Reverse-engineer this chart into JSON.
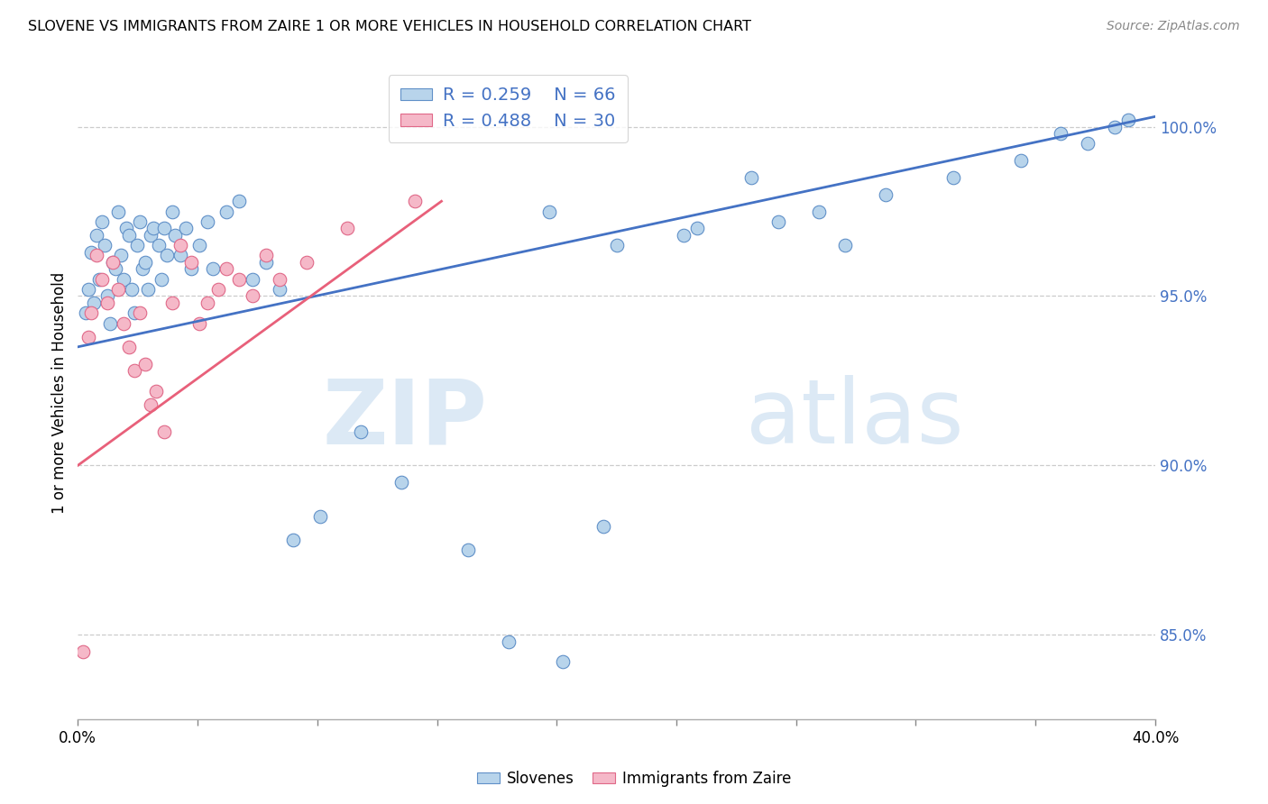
{
  "title": "SLOVENE VS IMMIGRANTS FROM ZAIRE 1 OR MORE VEHICLES IN HOUSEHOLD CORRELATION CHART",
  "source": "Source: ZipAtlas.com",
  "ylabel": "1 or more Vehicles in Household",
  "ytick_values": [
    85.0,
    90.0,
    95.0,
    100.0
  ],
  "xmin": 0.0,
  "xmax": 40.0,
  "ymin": 82.5,
  "ymax": 101.8,
  "legend_blue_label": "Slovenes",
  "legend_pink_label": "Immigrants from Zaire",
  "legend_r_blue": "R = 0.259",
  "legend_n_blue": "N = 66",
  "legend_r_pink": "R = 0.488",
  "legend_n_pink": "N = 30",
  "blue_fill": "#b8d4eb",
  "pink_fill": "#f5b8c8",
  "blue_edge": "#6090c8",
  "pink_edge": "#e06888",
  "blue_line_color": "#4472c4",
  "pink_line_color": "#e8607a",
  "text_color": "#4472c4",
  "watermark_color": "#dce9f5",
  "grid_color": "#cccccc",
  "background_color": "#ffffff",
  "blue_trendline_x": [
    0.0,
    40.0
  ],
  "blue_trendline_y": [
    93.5,
    100.3
  ],
  "pink_trendline_x": [
    0.0,
    13.5
  ],
  "pink_trendline_y": [
    90.0,
    97.8
  ],
  "blue_scatter_x": [
    0.3,
    0.4,
    0.5,
    0.6,
    0.7,
    0.8,
    0.9,
    1.0,
    1.1,
    1.2,
    1.3,
    1.4,
    1.5,
    1.6,
    1.7,
    1.8,
    1.9,
    2.0,
    2.1,
    2.2,
    2.3,
    2.4,
    2.5,
    2.6,
    2.7,
    2.8,
    3.0,
    3.1,
    3.2,
    3.3,
    3.5,
    3.6,
    3.8,
    4.0,
    4.2,
    4.5,
    4.8,
    5.0,
    5.5,
    6.0,
    6.5,
    7.0,
    7.5,
    8.0,
    9.0,
    10.5,
    12.0,
    14.5,
    17.5,
    20.0,
    22.5,
    25.0,
    27.5,
    30.0,
    32.5,
    35.0,
    37.5,
    39.0,
    16.0,
    18.0,
    19.5,
    23.0,
    26.0,
    28.5,
    36.5,
    38.5
  ],
  "blue_scatter_y": [
    94.5,
    95.2,
    96.3,
    94.8,
    96.8,
    95.5,
    97.2,
    96.5,
    95.0,
    94.2,
    96.0,
    95.8,
    97.5,
    96.2,
    95.5,
    97.0,
    96.8,
    95.2,
    94.5,
    96.5,
    97.2,
    95.8,
    96.0,
    95.2,
    96.8,
    97.0,
    96.5,
    95.5,
    97.0,
    96.2,
    97.5,
    96.8,
    96.2,
    97.0,
    95.8,
    96.5,
    97.2,
    95.8,
    97.5,
    97.8,
    95.5,
    96.0,
    95.2,
    87.8,
    88.5,
    91.0,
    89.5,
    87.5,
    97.5,
    96.5,
    96.8,
    98.5,
    97.5,
    98.0,
    98.5,
    99.0,
    99.5,
    100.2,
    84.8,
    84.2,
    88.2,
    97.0,
    97.2,
    96.5,
    99.8,
    100.0
  ],
  "pink_scatter_x": [
    0.2,
    0.4,
    0.5,
    0.7,
    0.9,
    1.1,
    1.3,
    1.5,
    1.7,
    1.9,
    2.1,
    2.3,
    2.5,
    2.7,
    2.9,
    3.2,
    3.5,
    3.8,
    4.2,
    4.5,
    4.8,
    5.2,
    5.5,
    6.0,
    6.5,
    7.0,
    7.5,
    8.5,
    10.0,
    12.5
  ],
  "pink_scatter_y": [
    84.5,
    93.8,
    94.5,
    96.2,
    95.5,
    94.8,
    96.0,
    95.2,
    94.2,
    93.5,
    92.8,
    94.5,
    93.0,
    91.8,
    92.2,
    91.0,
    94.8,
    96.5,
    96.0,
    94.2,
    94.8,
    95.2,
    95.8,
    95.5,
    95.0,
    96.2,
    95.5,
    96.0,
    97.0,
    97.8
  ]
}
